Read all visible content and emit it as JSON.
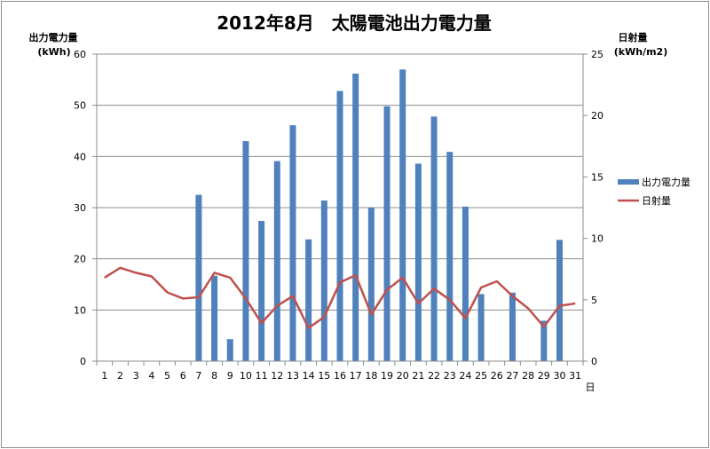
{
  "chart_data": {
    "type": "bar",
    "title": "2012年8月　太陽電池出力電力量",
    "ylabel": "出力電力量",
    "ylabel_unit": "(kWh)",
    "y2label": "日射量",
    "y2label_unit": "(kWh/m2)",
    "xlabel": "日",
    "ylim": [
      0,
      60
    ],
    "y2lim": [
      0,
      25
    ],
    "yticks": [
      0,
      10,
      20,
      30,
      40,
      50,
      60
    ],
    "y2ticks": [
      0,
      5,
      10,
      15,
      20,
      25
    ],
    "grid": true,
    "legend": "right",
    "categories": [
      "1",
      "2",
      "3",
      "4",
      "5",
      "6",
      "7",
      "8",
      "9",
      "10",
      "11",
      "12",
      "13",
      "14",
      "15",
      "16",
      "17",
      "18",
      "19",
      "20",
      "21",
      "22",
      "23",
      "24",
      "25",
      "26",
      "27",
      "28",
      "29",
      "30",
      "31"
    ],
    "series": [
      {
        "name": "出力電力量",
        "type": "bar",
        "axis": "left",
        "color": "#4f81bd",
        "values": [
          0,
          0,
          0,
          0,
          0,
          0,
          32.5,
          16.7,
          4.3,
          43.0,
          27.4,
          39.1,
          46.1,
          23.8,
          31.4,
          52.8,
          56.2,
          30.0,
          49.8,
          57.0,
          38.6,
          47.8,
          40.9,
          30.2,
          13.1,
          0,
          13.4,
          0,
          7.9,
          23.7,
          0
        ]
      },
      {
        "name": "日射量",
        "type": "line",
        "axis": "right",
        "color": "#c0504d",
        "values": [
          6.8,
          7.6,
          7.2,
          6.9,
          5.6,
          5.1,
          5.2,
          7.2,
          6.8,
          5.1,
          3.1,
          4.5,
          5.3,
          2.7,
          3.6,
          6.4,
          7.0,
          3.8,
          5.8,
          6.8,
          4.7,
          5.9,
          5.0,
          3.5,
          6.0,
          6.5,
          5.3,
          4.3,
          2.8,
          4.5,
          4.7
        ]
      }
    ]
  }
}
